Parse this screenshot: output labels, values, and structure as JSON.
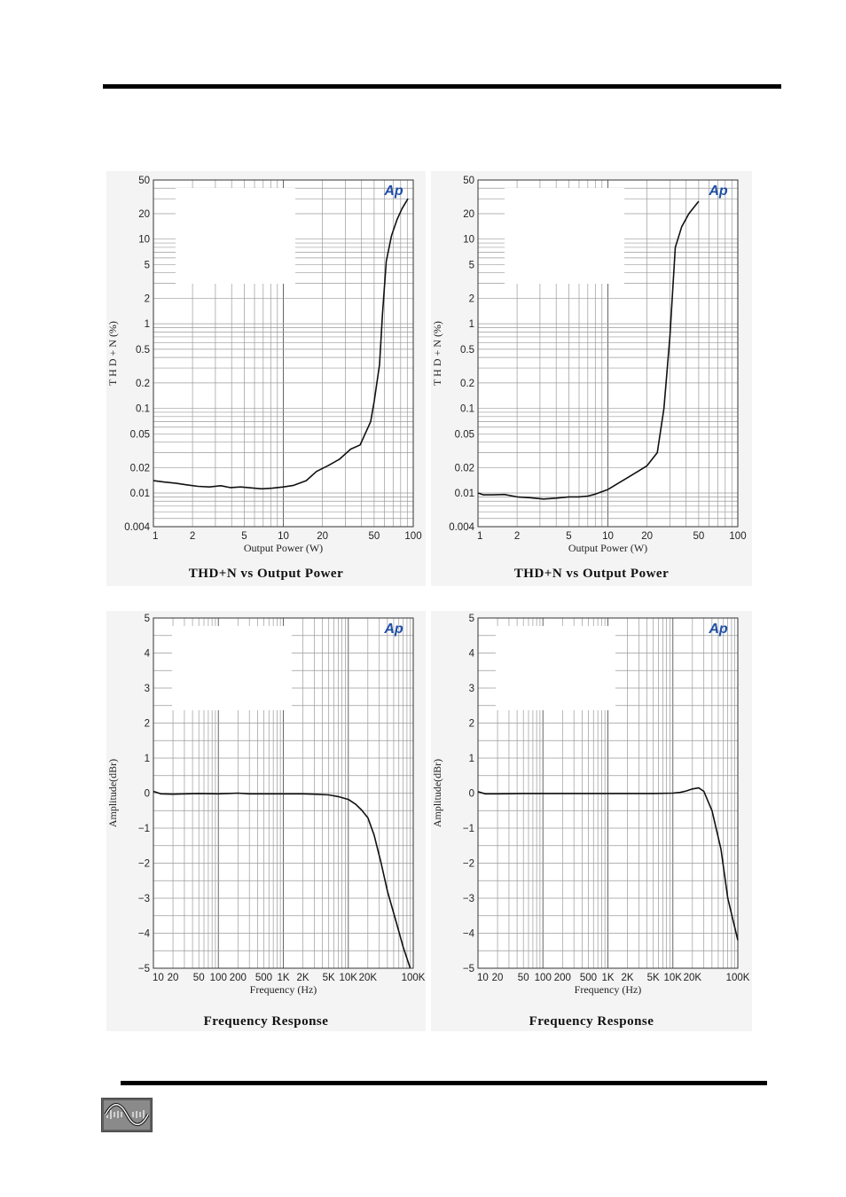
{
  "chart_data": [
    {
      "id": "c1",
      "type": "line",
      "title": "THD+N vs Output Power",
      "xlabel": "Output Power (W)",
      "ylabel": "T H D + N  (%)",
      "x_scale": "log",
      "y_scale": "log",
      "xlim": [
        1,
        100
      ],
      "ylim": [
        0.004,
        50
      ],
      "x_ticks": [
        1,
        2,
        5,
        10,
        20,
        50,
        100
      ],
      "x_tick_labels": [
        "1",
        "2",
        "5",
        "10",
        "20",
        "50",
        "100"
      ],
      "y_ticks": [
        0.004,
        0.01,
        0.02,
        0.05,
        0.1,
        0.2,
        0.5,
        1,
        2,
        5,
        10,
        20,
        50
      ],
      "y_tick_labels": [
        "0.004",
        "0.01",
        "0.02",
        "0.05",
        "0.1",
        "0.2",
        "0.5",
        "1",
        "2",
        "5",
        "10",
        "20",
        "50"
      ],
      "logo_text": "Ap",
      "x": [
        1,
        1.2,
        1.5,
        1.8,
        2.2,
        2.7,
        3.3,
        3.9,
        4.7,
        5.6,
        6.8,
        8.2,
        10,
        12,
        15,
        18,
        22,
        27,
        33,
        39,
        47,
        50,
        55,
        58,
        62,
        68,
        75,
        82,
        91
      ],
      "y": [
        0.014,
        0.0135,
        0.013,
        0.0125,
        0.012,
        0.0118,
        0.0122,
        0.0116,
        0.0118,
        0.0115,
        0.0112,
        0.0114,
        0.0118,
        0.0123,
        0.014,
        0.018,
        0.021,
        0.025,
        0.033,
        0.037,
        0.07,
        0.12,
        0.33,
        1.3,
        5.5,
        11,
        17,
        23,
        30
      ]
    },
    {
      "id": "c2",
      "type": "line",
      "title": "THD+N vs Output Power",
      "xlabel": "Output Power (W)",
      "ylabel": "T H D + N  (%)",
      "x_scale": "log",
      "y_scale": "log",
      "xlim": [
        1,
        100
      ],
      "ylim": [
        0.004,
        50
      ],
      "x_ticks": [
        1,
        2,
        5,
        10,
        20,
        50,
        100
      ],
      "x_tick_labels": [
        "1",
        "2",
        "5",
        "10",
        "20",
        "50",
        "100"
      ],
      "y_ticks": [
        0.004,
        0.01,
        0.02,
        0.05,
        0.1,
        0.2,
        0.5,
        1,
        2,
        5,
        10,
        20,
        50
      ],
      "y_tick_labels": [
        "0.004",
        "0.01",
        "0.02",
        "0.05",
        "0.1",
        "0.2",
        "0.5",
        "1",
        "2",
        "5",
        "10",
        "20",
        "50"
      ],
      "logo_text": "Ap",
      "x": [
        1,
        1.1,
        1.3,
        1.6,
        2,
        2.5,
        3.2,
        4,
        5,
        6,
        7,
        8,
        10,
        12,
        14,
        17,
        20,
        24,
        27,
        30,
        33,
        37,
        42,
        50
      ],
      "y": [
        0.01,
        0.0095,
        0.0095,
        0.0096,
        0.009,
        0.0088,
        0.0085,
        0.0087,
        0.009,
        0.009,
        0.0092,
        0.0097,
        0.011,
        0.013,
        0.015,
        0.018,
        0.021,
        0.03,
        0.1,
        0.7,
        8,
        14,
        20,
        28
      ]
    },
    {
      "id": "c3",
      "type": "line",
      "title": "Frequency Response",
      "xlabel": "Frequency (Hz)",
      "ylabel": "Amplitude(dBr)",
      "x_scale": "log",
      "y_scale": "linear",
      "xlim": [
        10,
        100000
      ],
      "ylim": [
        -5,
        5
      ],
      "x_ticks": [
        10,
        20,
        50,
        100,
        200,
        500,
        1000,
        2000,
        5000,
        10000,
        20000,
        100000
      ],
      "x_tick_labels": [
        "10",
        "20",
        "50",
        "100",
        "200",
        "500",
        "1K",
        "2K",
        "5K",
        "10K",
        "20K",
        "100K"
      ],
      "y_ticks": [
        -5,
        -4,
        -3,
        -2,
        -1,
        0,
        1,
        2,
        3,
        4,
        5
      ],
      "y_tick_labels": [
        "−5",
        "−4",
        "−3",
        "−2",
        "−1",
        "0",
        "1",
        "2",
        "3",
        "4",
        "5"
      ],
      "logo_text": "Ap",
      "x": [
        10,
        13,
        20,
        50,
        100,
        200,
        300,
        500,
        1000,
        2000,
        3000,
        5000,
        7000,
        10000,
        13000,
        16000,
        20000,
        25000,
        32000,
        40000,
        55000,
        70000,
        90000
      ],
      "y": [
        0.05,
        -0.02,
        -0.03,
        -0.01,
        -0.02,
        0.0,
        -0.02,
        -0.02,
        -0.02,
        -0.02,
        -0.03,
        -0.05,
        -0.1,
        -0.18,
        -0.32,
        -0.48,
        -0.7,
        -1.2,
        -2.0,
        -2.8,
        -3.7,
        -4.4,
        -5.0
      ]
    },
    {
      "id": "c4",
      "type": "line",
      "title": "Frequency Response",
      "xlabel": "Frequency (Hz)",
      "ylabel": "Amplitude(dBr)",
      "x_scale": "log",
      "y_scale": "linear",
      "xlim": [
        10,
        100000
      ],
      "ylim": [
        -5,
        5
      ],
      "x_ticks": [
        10,
        20,
        50,
        100,
        200,
        500,
        1000,
        2000,
        5000,
        10000,
        20000,
        100000
      ],
      "x_tick_labels": [
        "10",
        "20",
        "50",
        "100",
        "200",
        "500",
        "1K",
        "2K",
        "5K",
        "10K",
        "20K",
        "100K"
      ],
      "y_ticks": [
        -5,
        -4,
        -3,
        -2,
        -1,
        0,
        1,
        2,
        3,
        4,
        5
      ],
      "y_tick_labels": [
        "−5",
        "−4",
        "−3",
        "−2",
        "−1",
        "0",
        "1",
        "2",
        "3",
        "4",
        "5"
      ],
      "logo_text": "Ap",
      "x": [
        10,
        13,
        20,
        50,
        100,
        200,
        500,
        1000,
        2000,
        5000,
        10000,
        13000,
        16000,
        20000,
        25000,
        30000,
        40000,
        55000,
        70000,
        100000
      ],
      "y": [
        0.04,
        -0.02,
        -0.02,
        -0.01,
        -0.01,
        -0.01,
        -0.01,
        -0.01,
        -0.01,
        -0.01,
        0.0,
        0.02,
        0.06,
        0.12,
        0.15,
        0.05,
        -0.5,
        -1.6,
        -3.0,
        -4.2
      ]
    }
  ]
}
